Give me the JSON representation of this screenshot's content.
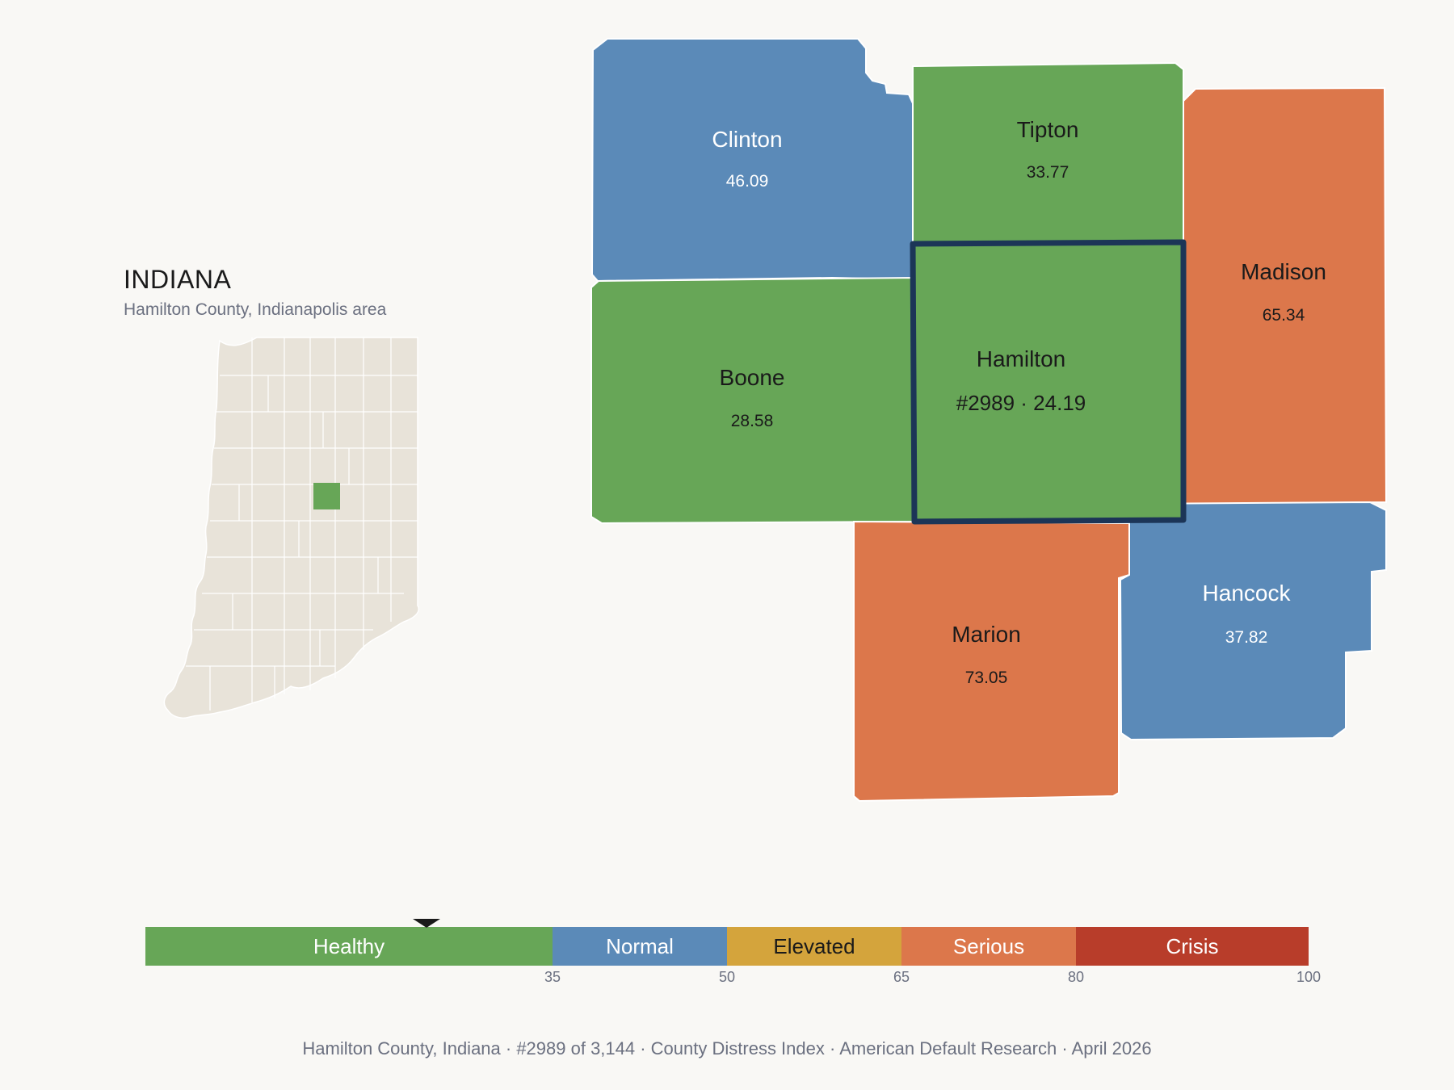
{
  "state": {
    "title": "INDIANA",
    "subtitle": "Hamilton County, Indianapolis area"
  },
  "colors": {
    "healthy": "#67a657",
    "normal": "#5b8ab8",
    "elevated": "#d4a43c",
    "serious": "#dc774b",
    "crisis": "#b83d2a",
    "inset_fill": "#e8e3d9",
    "selected_border": "#1c3557"
  },
  "counties": {
    "clinton": {
      "name": "Clinton",
      "score": "46.09",
      "category": "normal"
    },
    "tipton": {
      "name": "Tipton",
      "score": "33.77",
      "category": "healthy"
    },
    "madison": {
      "name": "Madison",
      "score": "65.34",
      "category": "serious"
    },
    "boone": {
      "name": "Boone",
      "score": "28.58",
      "category": "healthy"
    },
    "hamilton": {
      "name": "Hamilton",
      "score": "#2989 · 24.19",
      "category": "healthy",
      "selected": true,
      "index": 24.19
    },
    "marion": {
      "name": "Marion",
      "score": "73.05",
      "category": "serious"
    },
    "hancock": {
      "name": "Hancock",
      "score": "37.82",
      "category": "normal"
    }
  },
  "scale": {
    "bands": [
      {
        "label": "Healthy",
        "from": 0,
        "to": 35,
        "color": "#67a657",
        "text_color": "#ffffff"
      },
      {
        "label": "Normal",
        "from": 35,
        "to": 50,
        "color": "#5b8ab8",
        "text_color": "#ffffff"
      },
      {
        "label": "Elevated",
        "from": 50,
        "to": 65,
        "color": "#d4a43c",
        "text_color": "#1a1a1a"
      },
      {
        "label": "Serious",
        "from": 65,
        "to": 80,
        "color": "#dc774b",
        "text_color": "#ffffff"
      },
      {
        "label": "Crisis",
        "from": 80,
        "to": 100,
        "color": "#b83d2a",
        "text_color": "#ffffff"
      }
    ],
    "ticks": [
      "35",
      "50",
      "65",
      "80",
      "100"
    ],
    "marker_value": 24.19
  },
  "footer": "Hamilton County, Indiana  ·  #2989 of 3,144  ·  County Distress Index  ·  American Default Research  ·  April 2026"
}
